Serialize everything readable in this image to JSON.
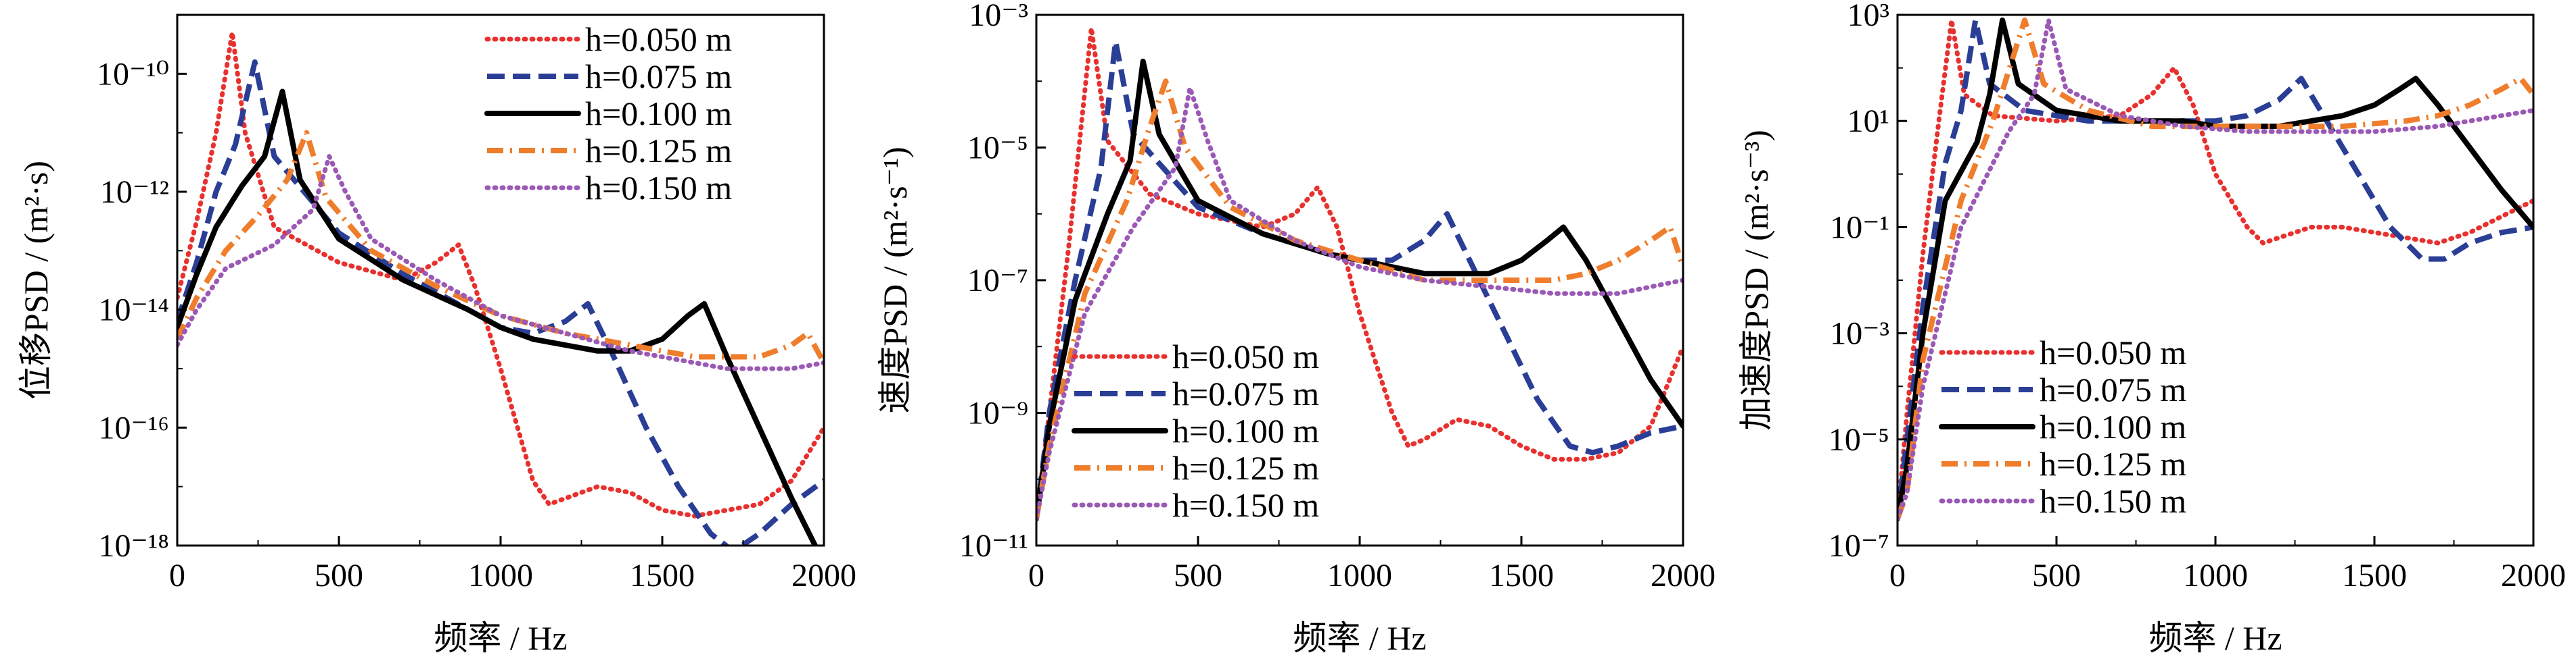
{
  "chart_data": [
    {
      "type": "line",
      "xlabel": "频率 / Hz",
      "ylabel": "位移PSD / (m²·s)",
      "x_ticks": [
        "0",
        "500",
        "1000",
        "1500",
        "2000"
      ],
      "y_ticks": [
        "10⁻¹⁸",
        "10⁻¹⁶",
        "10⁻¹⁴",
        "10⁻¹²",
        "10⁻¹⁰"
      ],
      "xlim": [
        0,
        2000
      ],
      "ylim_log10": [
        -18,
        -9
      ],
      "legend_position": "top-right",
      "series": [
        {
          "name": "h=0.050 m",
          "color": "#e8312e",
          "style": "dotted",
          "x": [
            0,
            60,
            120,
            170,
            210,
            300,
            500,
            700,
            800,
            870,
            920,
            1000,
            1100,
            1150,
            1200,
            1300,
            1400,
            1500,
            1600,
            1700,
            1800,
            1900,
            2000
          ],
          "y": [
            -13.8,
            -12.5,
            -11.0,
            -9.3,
            -11.0,
            -12.6,
            -13.2,
            -13.5,
            -13.2,
            -12.9,
            -13.6,
            -15.0,
            -16.9,
            -17.3,
            -17.2,
            -17.0,
            -17.1,
            -17.4,
            -17.5,
            -17.4,
            -17.3,
            -16.9,
            -16.0
          ]
        },
        {
          "name": "h=0.075 m",
          "color": "#2a3e96",
          "style": "dashed",
          "x": [
            0,
            60,
            120,
            180,
            240,
            300,
            500,
            700,
            900,
            1000,
            1100,
            1200,
            1270,
            1350,
            1450,
            1550,
            1650,
            1720,
            1800,
            1900,
            2000
          ],
          "y": [
            -14.2,
            -13.2,
            -12.0,
            -11.2,
            -9.8,
            -11.4,
            -12.7,
            -13.4,
            -14.0,
            -14.3,
            -14.4,
            -14.2,
            -13.9,
            -14.8,
            -16.0,
            -17.0,
            -17.8,
            -18.1,
            -17.8,
            -17.3,
            -16.9
          ]
        },
        {
          "name": "h=0.100 m",
          "color": "#000000",
          "style": "solid",
          "x": [
            0,
            60,
            120,
            200,
            270,
            325,
            380,
            500,
            700,
            900,
            1000,
            1100,
            1200,
            1300,
            1400,
            1500,
            1580,
            1630,
            1700,
            1800,
            1900,
            2000
          ],
          "y": [
            -14.3,
            -13.4,
            -12.6,
            -11.9,
            -11.4,
            -10.3,
            -11.8,
            -12.8,
            -13.5,
            -14.0,
            -14.3,
            -14.5,
            -14.6,
            -14.7,
            -14.7,
            -14.5,
            -14.1,
            -13.9,
            -14.8,
            -16.0,
            -17.2,
            -18.3
          ]
        },
        {
          "name": "h=0.125 m",
          "color": "#ef7d2b",
          "style": "dashdot",
          "x": [
            0,
            60,
            150,
            250,
            340,
            400,
            460,
            600,
            800,
            1000,
            1200,
            1400,
            1600,
            1700,
            1800,
            1900,
            1950,
            2000
          ],
          "y": [
            -14.5,
            -13.8,
            -13.0,
            -12.4,
            -11.8,
            -11.0,
            -12.1,
            -13.0,
            -13.6,
            -14.1,
            -14.4,
            -14.6,
            -14.8,
            -14.8,
            -14.8,
            -14.6,
            -14.4,
            -14.9
          ]
        },
        {
          "name": "h=0.150 m",
          "color": "#9b59b6",
          "style": "dotted",
          "x": [
            0,
            60,
            150,
            300,
            420,
            470,
            520,
            600,
            800,
            1000,
            1200,
            1400,
            1600,
            1700,
            1800,
            1900,
            2000
          ],
          "y": [
            -14.6,
            -14.0,
            -13.3,
            -12.9,
            -12.3,
            -11.4,
            -12.0,
            -12.8,
            -13.5,
            -14.1,
            -14.4,
            -14.7,
            -14.9,
            -15.0,
            -15.0,
            -15.0,
            -14.9
          ]
        }
      ]
    },
    {
      "type": "line",
      "xlabel": "频率 / Hz",
      "ylabel": "速度PSD / (m²·s⁻¹)",
      "x_ticks": [
        "0",
        "500",
        "1000",
        "1500",
        "2000"
      ],
      "y_ticks": [
        "10⁻¹¹",
        "10⁻⁹",
        "10⁻⁷",
        "10⁻⁵",
        "10⁻³"
      ],
      "xlim": [
        0,
        2000
      ],
      "ylim_log10": [
        -11,
        -3
      ],
      "legend_position": "bottom-left",
      "series": [
        {
          "name": "h=0.050 m",
          "color": "#e8312e",
          "style": "dotted",
          "x": [
            0,
            40,
            100,
            170,
            220,
            350,
            500,
            700,
            800,
            870,
            930,
            1000,
            1100,
            1150,
            1200,
            1300,
            1400,
            1500,
            1600,
            1700,
            1800,
            1900,
            2000
          ],
          "y": [
            -10.6,
            -9.0,
            -6.5,
            -3.2,
            -4.9,
            -5.7,
            -6.0,
            -6.2,
            -6.0,
            -5.6,
            -6.2,
            -7.5,
            -9.0,
            -9.5,
            -9.4,
            -9.1,
            -9.2,
            -9.5,
            -9.7,
            -9.7,
            -9.6,
            -9.2,
            -8.0
          ]
        },
        {
          "name": "h=0.075 m",
          "color": "#2a3e96",
          "style": "dashed",
          "x": [
            0,
            40,
            120,
            200,
            245,
            300,
            500,
            700,
            900,
            1000,
            1100,
            1200,
            1270,
            1350,
            1450,
            1550,
            1650,
            1720,
            1800,
            1900,
            2000
          ],
          "y": [
            -10.6,
            -9.0,
            -7.0,
            -5.3,
            -3.4,
            -4.8,
            -5.9,
            -6.3,
            -6.6,
            -6.7,
            -6.7,
            -6.4,
            -6.0,
            -6.8,
            -7.8,
            -8.8,
            -9.5,
            -9.6,
            -9.5,
            -9.3,
            -9.2
          ]
        },
        {
          "name": "h=0.100 m",
          "color": "#000000",
          "style": "solid",
          "x": [
            0,
            40,
            120,
            220,
            290,
            330,
            380,
            500,
            700,
            900,
            1000,
            1100,
            1200,
            1300,
            1400,
            1500,
            1580,
            1630,
            1700,
            1800,
            1900,
            2000
          ],
          "y": [
            -10.6,
            -9.2,
            -7.3,
            -6.0,
            -5.2,
            -3.7,
            -4.8,
            -5.8,
            -6.3,
            -6.6,
            -6.7,
            -6.8,
            -6.9,
            -6.9,
            -6.9,
            -6.7,
            -6.4,
            -6.2,
            -6.7,
            -7.6,
            -8.5,
            -9.2
          ]
        },
        {
          "name": "h=0.125 m",
          "color": "#ef7d2b",
          "style": "dashdot",
          "x": [
            0,
            40,
            150,
            280,
            350,
            400,
            460,
            600,
            800,
            1000,
            1200,
            1400,
            1600,
            1700,
            1800,
            1900,
            1960,
            2000
          ],
          "y": [
            -10.6,
            -9.5,
            -7.2,
            -5.8,
            -4.7,
            -4.0,
            -5.0,
            -5.9,
            -6.4,
            -6.7,
            -7.0,
            -7.0,
            -7.0,
            -6.9,
            -6.7,
            -6.4,
            -6.2,
            -6.8
          ]
        },
        {
          "name": "h=0.150 m",
          "color": "#9b59b6",
          "style": "dotted",
          "x": [
            0,
            40,
            150,
            300,
            430,
            475,
            530,
            600,
            800,
            1000,
            1200,
            1400,
            1600,
            1700,
            1800,
            1900,
            2000
          ],
          "y": [
            -10.6,
            -9.6,
            -7.5,
            -6.2,
            -5.3,
            -4.1,
            -4.9,
            -5.8,
            -6.4,
            -6.8,
            -7.0,
            -7.1,
            -7.2,
            -7.2,
            -7.2,
            -7.1,
            -7.0
          ]
        }
      ]
    },
    {
      "type": "line",
      "xlabel": "频率 / Hz",
      "ylabel": "加速度PSD / (m²·s⁻³)",
      "x_ticks": [
        "0",
        "500",
        "1000",
        "1500",
        "2000"
      ],
      "y_ticks": [
        "10⁻⁷",
        "10⁻⁵",
        "10⁻³",
        "10⁻¹",
        "10¹",
        "10³"
      ],
      "xlim": [
        0,
        2000
      ],
      "ylim_log10": [
        -7,
        3
      ],
      "legend_position": "bottom-left",
      "series": [
        {
          "name": "h=0.050 m",
          "color": "#e8312e",
          "style": "dotted",
          "x": [
            0,
            30,
            80,
            130,
            170,
            210,
            300,
            500,
            700,
            800,
            870,
            930,
            1000,
            1100,
            1150,
            1200,
            1300,
            1400,
            1500,
            1600,
            1700,
            1800,
            1900,
            2000
          ],
          "y": [
            -6.5,
            -4.5,
            -1.5,
            1.0,
            2.9,
            1.5,
            1.1,
            1.0,
            1.1,
            1.5,
            2.0,
            1.3,
            0.0,
            -1.0,
            -1.3,
            -1.2,
            -1.0,
            -1.0,
            -1.1,
            -1.2,
            -1.3,
            -1.1,
            -0.8,
            -0.5
          ]
        },
        {
          "name": "h=0.075 m",
          "color": "#2a3e96",
          "style": "dashed",
          "x": [
            0,
            30,
            80,
            150,
            200,
            245,
            290,
            400,
            600,
            800,
            1000,
            1100,
            1200,
            1270,
            1350,
            1450,
            1550,
            1650,
            1720,
            1800,
            1900,
            2000
          ],
          "y": [
            -6.5,
            -5.0,
            -2.5,
            0.2,
            1.2,
            2.9,
            1.7,
            1.2,
            1.0,
            1.0,
            1.0,
            1.1,
            1.4,
            1.8,
            1.0,
            0.0,
            -1.0,
            -1.6,
            -1.6,
            -1.3,
            -1.1,
            -1.0
          ]
        },
        {
          "name": "h=0.100 m",
          "color": "#000000",
          "style": "solid",
          "x": [
            0,
            30,
            80,
            150,
            250,
            290,
            330,
            380,
            500,
            700,
            900,
            1000,
            1100,
            1200,
            1300,
            1400,
            1500,
            1580,
            1630,
            1700,
            1800,
            1900,
            2000
          ],
          "y": [
            -6.5,
            -5.5,
            -3.0,
            -0.5,
            0.6,
            1.5,
            2.9,
            1.7,
            1.2,
            1.0,
            1.0,
            0.9,
            0.9,
            0.9,
            1.0,
            1.1,
            1.3,
            1.6,
            1.8,
            1.3,
            0.5,
            -0.3,
            -1.0
          ]
        },
        {
          "name": "h=0.125 m",
          "color": "#ef7d2b",
          "style": "dashdot",
          "x": [
            0,
            30,
            80,
            200,
            300,
            400,
            460,
            600,
            800,
            1000,
            1200,
            1400,
            1600,
            1700,
            1800,
            1900,
            1960,
            2000
          ],
          "y": [
            -6.5,
            -6.0,
            -3.5,
            -0.5,
            1.0,
            2.9,
            1.7,
            1.2,
            0.9,
            0.9,
            0.9,
            0.9,
            1.0,
            1.1,
            1.3,
            1.6,
            1.8,
            1.5
          ]
        },
        {
          "name": "h=0.150 m",
          "color": "#9b59b6",
          "style": "dotted",
          "x": [
            0,
            30,
            80,
            200,
            350,
            430,
            475,
            530,
            700,
            900,
            1100,
            1300,
            1500,
            1700,
            1800,
            1900,
            2000
          ],
          "y": [
            -6.5,
            -6.0,
            -4.0,
            -1.0,
            0.8,
            1.5,
            2.9,
            1.6,
            1.1,
            0.9,
            0.8,
            0.8,
            0.8,
            0.9,
            1.0,
            1.1,
            1.2
          ]
        }
      ]
    }
  ]
}
